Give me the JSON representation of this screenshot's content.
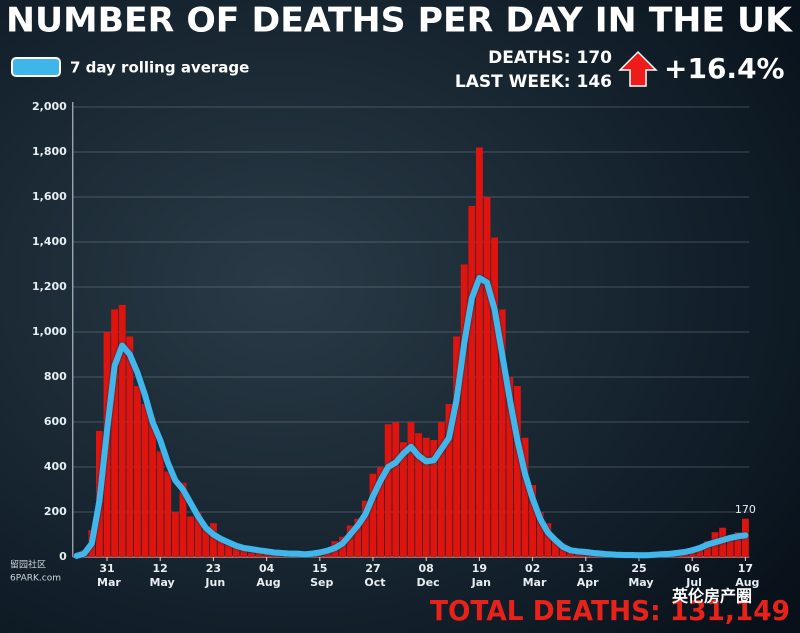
{
  "chart_data": {
    "type": "bar_line",
    "title": "NUMBER OF DEATHS PER DAY IN THE UK",
    "annotations": [
      "DEATHS: 170",
      "LAST WEEK: 146",
      "+16.4%",
      "TOTAL DEATHS: 131,149"
    ],
    "watermarks": [
      "留园社区",
      "6PARK.com",
      "英伦房产圈"
    ],
    "legend": "top-left",
    "grid": true,
    "categories": [
      null,
      null,
      null,
      null,
      "31 Mar",
      null,
      null,
      null,
      null,
      null,
      null,
      "12 May",
      null,
      null,
      null,
      null,
      null,
      null,
      "23 Jun",
      null,
      null,
      null,
      null,
      null,
      null,
      "04 Aug",
      null,
      null,
      null,
      null,
      null,
      null,
      "15 Sep",
      null,
      null,
      null,
      null,
      null,
      null,
      "27 Oct",
      null,
      null,
      null,
      null,
      null,
      null,
      "08 Dec",
      null,
      null,
      null,
      null,
      null,
      null,
      "19 Jan",
      null,
      null,
      null,
      null,
      null,
      null,
      "02 Mar",
      null,
      null,
      null,
      null,
      null,
      null,
      "13 Apr",
      null,
      null,
      null,
      null,
      null,
      null,
      "25 May",
      null,
      null,
      null,
      null,
      null,
      null,
      "06 Jul",
      null,
      null,
      null,
      null,
      null,
      null,
      "17 Aug"
    ],
    "series": [
      {
        "type": "bar",
        "color": "#e0140f",
        "values": [
          10,
          30,
          120,
          560,
          1000,
          1100,
          1120,
          980,
          760,
          680,
          620,
          470,
          380,
          200,
          330,
          180,
          200,
          120,
          150,
          90,
          70,
          60,
          50,
          20,
          40,
          30,
          15,
          25,
          10,
          20,
          10,
          25,
          30,
          35,
          70,
          90,
          140,
          170,
          250,
          370,
          400,
          590,
          600,
          510,
          600,
          550,
          530,
          520,
          600,
          680,
          980,
          1300,
          1560,
          1820,
          1600,
          1420,
          1100,
          800,
          760,
          530,
          320,
          200,
          150,
          80,
          60,
          40,
          30,
          20,
          15,
          20,
          10,
          15,
          10,
          10,
          5,
          10,
          15,
          20,
          25,
          20,
          30,
          40,
          50,
          70,
          110,
          130,
          95,
          110,
          170
        ]
      },
      {
        "type": "line",
        "name": "7 day rolling average",
        "color": "#3fb6ea",
        "values": [
          5,
          15,
          60,
          250,
          560,
          850,
          940,
          900,
          820,
          720,
          600,
          520,
          420,
          340,
          300,
          240,
          180,
          130,
          100,
          80,
          65,
          50,
          40,
          35,
          30,
          25,
          20,
          18,
          15,
          15,
          12,
          15,
          20,
          28,
          40,
          60,
          100,
          140,
          190,
          270,
          340,
          400,
          420,
          460,
          490,
          450,
          425,
          430,
          480,
          530,
          700,
          950,
          1150,
          1240,
          1220,
          1100,
          900,
          700,
          520,
          370,
          260,
          170,
          110,
          75,
          45,
          30,
          25,
          22,
          18,
          15,
          12,
          10,
          9,
          9,
          8,
          8,
          10,
          12,
          14,
          18,
          22,
          30,
          40,
          55,
          65,
          75,
          85,
          92,
          96
        ]
      }
    ],
    "ylim": [
      0,
      2000
    ],
    "yticks": [
      0,
      200,
      400,
      600,
      800,
      {
        "value": 1000,
        "label": "1,000"
      },
      {
        "value": 1200,
        "label": "1,200"
      },
      {
        "value": 1400,
        "label": "1,400"
      },
      {
        "value": 1600,
        "label": "1,600"
      },
      {
        "value": 1800,
        "label": "1,800"
      },
      {
        "value": 2000,
        "label": "2,000"
      }
    ]
  }
}
